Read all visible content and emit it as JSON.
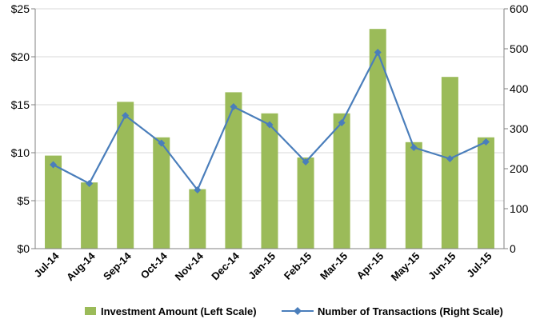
{
  "chart_data": {
    "type": "bar+line",
    "categories": [
      "Jul-14",
      "Aug-14",
      "Sep-14",
      "Oct-14",
      "Nov-14",
      "Dec-14",
      "Jan-15",
      "Feb-15",
      "Mar-15",
      "Apr-15",
      "May-15",
      "Jun-15",
      "Jul-15"
    ],
    "series": [
      {
        "name": "Investment Amount (Left Scale)",
        "type": "bar",
        "axis": "left",
        "color": "#9bbb59",
        "values": [
          9.7,
          6.9,
          15.3,
          11.6,
          6.2,
          16.3,
          14.1,
          9.5,
          14.1,
          22.9,
          11.1,
          17.9,
          11.6
        ]
      },
      {
        "name": "Number of Transactions (Right Scale)",
        "type": "line",
        "axis": "right",
        "color": "#4a7ebb",
        "marker": "diamond",
        "values": [
          210,
          163,
          333,
          264,
          147,
          355,
          310,
          217,
          315,
          491,
          253,
          225,
          267
        ]
      }
    ],
    "y_left": {
      "ylim": [
        0,
        25
      ],
      "ticks": [
        0,
        5,
        10,
        15,
        20,
        25
      ],
      "labels": [
        "$0",
        "$5",
        "$10",
        "$15",
        "$20",
        "$25"
      ]
    },
    "y_right": {
      "ylim": [
        0,
        600
      ],
      "ticks": [
        0,
        100,
        200,
        300,
        400,
        500,
        600
      ],
      "labels": [
        "0",
        "100",
        "200",
        "300",
        "400",
        "500",
        "600"
      ]
    },
    "grid": true,
    "legend_position": "bottom"
  }
}
